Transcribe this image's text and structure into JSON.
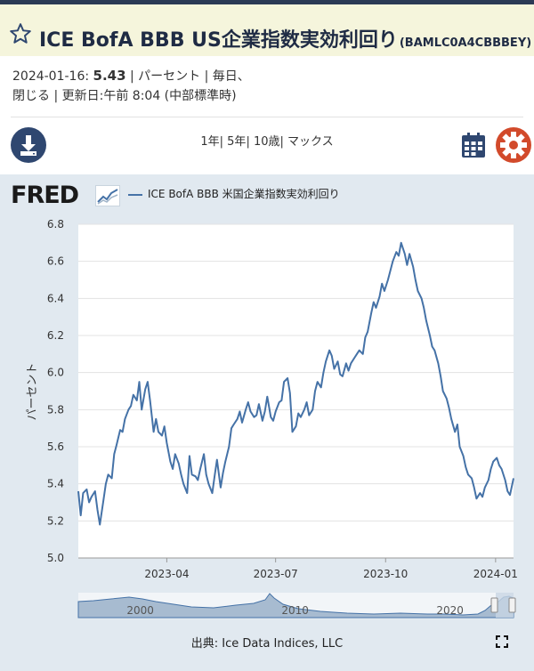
{
  "header": {
    "title": "ICE BofA BBB US企業指数実効利回り",
    "series_id": "(BAMLC0A4CBBBEY)"
  },
  "meta": {
    "date": "2024-01-16:",
    "value": "5.43",
    "units": "パーセント",
    "frequency": "毎日、",
    "line2": "閉じる | 更新日:午前 8:04 (中部標準時)"
  },
  "toolbar": {
    "ranges": [
      "1年",
      "5年",
      "10歳",
      "マックス"
    ]
  },
  "icons": {
    "download": "download-icon",
    "calendar": "calendar-icon",
    "settings": "gear-icon",
    "star": "star-icon",
    "fullscreen": "fullscreen-icon"
  },
  "brand": "FRED",
  "colors": {
    "line": "#4572a7",
    "header_bg": "#f5f5dc",
    "panel_bg": "#e1e9f0",
    "gear": "#d24a2b",
    "dark_blue": "#2f4770"
  },
  "source": "出典: Ice Data Indices, LLC",
  "chart_data": {
    "type": "line",
    "legend": "ICE BofA BBB 米国企業指数実効利回り",
    "ylabel": "パーセント",
    "ylim": [
      5.0,
      6.8
    ],
    "yticks": [
      "5.0",
      "5.2",
      "5.4",
      "5.6",
      "5.8",
      "6.0",
      "6.2",
      "6.4",
      "6.6",
      "6.8"
    ],
    "xlim": [
      "2023-01-17",
      "2024-01-16"
    ],
    "xticks": [
      {
        "date": "2023-04-01",
        "label": "2023-04"
      },
      {
        "date": "2023-07-01",
        "label": "2023-07"
      },
      {
        "date": "2023-10-01",
        "label": "2023-10"
      },
      {
        "date": "2024-01-01",
        "label": "2024-01"
      }
    ],
    "points": [
      [
        "2023-01-17",
        5.36
      ],
      [
        "2023-01-19",
        5.23
      ],
      [
        "2023-01-21",
        5.35
      ],
      [
        "2023-01-24",
        5.37
      ],
      [
        "2023-01-26",
        5.3
      ],
      [
        "2023-01-28",
        5.33
      ],
      [
        "2023-01-31",
        5.36
      ],
      [
        "2023-02-02",
        5.26
      ],
      [
        "2023-02-04",
        5.18
      ],
      [
        "2023-02-07",
        5.31
      ],
      [
        "2023-02-09",
        5.4
      ],
      [
        "2023-02-11",
        5.45
      ],
      [
        "2023-02-14",
        5.43
      ],
      [
        "2023-02-16",
        5.56
      ],
      [
        "2023-02-18",
        5.61
      ],
      [
        "2023-02-21",
        5.69
      ],
      [
        "2023-02-23",
        5.68
      ],
      [
        "2023-02-25",
        5.75
      ],
      [
        "2023-02-28",
        5.8
      ],
      [
        "2023-03-02",
        5.82
      ],
      [
        "2023-03-04",
        5.88
      ],
      [
        "2023-03-07",
        5.85
      ],
      [
        "2023-03-09",
        5.95
      ],
      [
        "2023-03-11",
        5.8
      ],
      [
        "2023-03-14",
        5.91
      ],
      [
        "2023-03-16",
        5.95
      ],
      [
        "2023-03-18",
        5.85
      ],
      [
        "2023-03-21",
        5.68
      ],
      [
        "2023-03-23",
        5.75
      ],
      [
        "2023-03-25",
        5.68
      ],
      [
        "2023-03-28",
        5.66
      ],
      [
        "2023-03-30",
        5.71
      ],
      [
        "2023-04-01",
        5.62
      ],
      [
        "2023-04-04",
        5.52
      ],
      [
        "2023-04-06",
        5.48
      ],
      [
        "2023-04-08",
        5.56
      ],
      [
        "2023-04-11",
        5.51
      ],
      [
        "2023-04-13",
        5.45
      ],
      [
        "2023-04-15",
        5.4
      ],
      [
        "2023-04-18",
        5.35
      ],
      [
        "2023-04-20",
        5.55
      ],
      [
        "2023-04-22",
        5.45
      ],
      [
        "2023-04-25",
        5.44
      ],
      [
        "2023-04-27",
        5.42
      ],
      [
        "2023-04-29",
        5.48
      ],
      [
        "2023-05-02",
        5.56
      ],
      [
        "2023-05-04",
        5.45
      ],
      [
        "2023-05-06",
        5.4
      ],
      [
        "2023-05-09",
        5.35
      ],
      [
        "2023-05-11",
        5.44
      ],
      [
        "2023-05-13",
        5.53
      ],
      [
        "2023-05-16",
        5.38
      ],
      [
        "2023-05-18",
        5.46
      ],
      [
        "2023-05-20",
        5.52
      ],
      [
        "2023-05-23",
        5.6
      ],
      [
        "2023-05-25",
        5.7
      ],
      [
        "2023-05-27",
        5.72
      ],
      [
        "2023-05-30",
        5.75
      ],
      [
        "2023-06-01",
        5.79
      ],
      [
        "2023-06-03",
        5.73
      ],
      [
        "2023-06-06",
        5.8
      ],
      [
        "2023-06-08",
        5.84
      ],
      [
        "2023-06-10",
        5.79
      ],
      [
        "2023-06-13",
        5.76
      ],
      [
        "2023-06-15",
        5.77
      ],
      [
        "2023-06-17",
        5.83
      ],
      [
        "2023-06-20",
        5.74
      ],
      [
        "2023-06-22",
        5.79
      ],
      [
        "2023-06-24",
        5.87
      ],
      [
        "2023-06-27",
        5.76
      ],
      [
        "2023-06-29",
        5.74
      ],
      [
        "2023-07-01",
        5.79
      ],
      [
        "2023-07-04",
        5.84
      ],
      [
        "2023-07-06",
        5.85
      ],
      [
        "2023-07-08",
        5.95
      ],
      [
        "2023-07-11",
        5.97
      ],
      [
        "2023-07-13",
        5.89
      ],
      [
        "2023-07-15",
        5.68
      ],
      [
        "2023-07-18",
        5.71
      ],
      [
        "2023-07-20",
        5.78
      ],
      [
        "2023-07-22",
        5.76
      ],
      [
        "2023-07-25",
        5.8
      ],
      [
        "2023-07-27",
        5.84
      ],
      [
        "2023-07-29",
        5.77
      ],
      [
        "2023-08-01",
        5.8
      ],
      [
        "2023-08-03",
        5.9
      ],
      [
        "2023-08-05",
        5.95
      ],
      [
        "2023-08-08",
        5.92
      ],
      [
        "2023-08-10",
        6.0
      ],
      [
        "2023-08-12",
        6.06
      ],
      [
        "2023-08-15",
        6.12
      ],
      [
        "2023-08-17",
        6.09
      ],
      [
        "2023-08-19",
        6.02
      ],
      [
        "2023-08-22",
        6.06
      ],
      [
        "2023-08-24",
        5.99
      ],
      [
        "2023-08-26",
        5.98
      ],
      [
        "2023-08-29",
        6.05
      ],
      [
        "2023-08-31",
        6.01
      ],
      [
        "2023-09-02",
        6.05
      ],
      [
        "2023-09-05",
        6.08
      ],
      [
        "2023-09-07",
        6.1
      ],
      [
        "2023-09-09",
        6.12
      ],
      [
        "2023-09-12",
        6.1
      ],
      [
        "2023-09-14",
        6.19
      ],
      [
        "2023-09-16",
        6.22
      ],
      [
        "2023-09-19",
        6.32
      ],
      [
        "2023-09-21",
        6.38
      ],
      [
        "2023-09-23",
        6.35
      ],
      [
        "2023-09-26",
        6.41
      ],
      [
        "2023-09-28",
        6.48
      ],
      [
        "2023-09-30",
        6.44
      ],
      [
        "2023-10-03",
        6.5
      ],
      [
        "2023-10-05",
        6.55
      ],
      [
        "2023-10-07",
        6.6
      ],
      [
        "2023-10-10",
        6.65
      ],
      [
        "2023-10-12",
        6.63
      ],
      [
        "2023-10-14",
        6.7
      ],
      [
        "2023-10-17",
        6.64
      ],
      [
        "2023-10-19",
        6.58
      ],
      [
        "2023-10-21",
        6.64
      ],
      [
        "2023-10-24",
        6.57
      ],
      [
        "2023-10-26",
        6.5
      ],
      [
        "2023-10-28",
        6.44
      ],
      [
        "2023-10-31",
        6.4
      ],
      [
        "2023-11-02",
        6.35
      ],
      [
        "2023-11-04",
        6.28
      ],
      [
        "2023-11-07",
        6.2
      ],
      [
        "2023-11-09",
        6.14
      ],
      [
        "2023-11-11",
        6.12
      ],
      [
        "2023-11-14",
        6.05
      ],
      [
        "2023-11-16",
        5.98
      ],
      [
        "2023-11-18",
        5.9
      ],
      [
        "2023-11-21",
        5.86
      ],
      [
        "2023-11-23",
        5.81
      ],
      [
        "2023-11-25",
        5.75
      ],
      [
        "2023-11-28",
        5.68
      ],
      [
        "2023-11-30",
        5.72
      ],
      [
        "2023-12-02",
        5.6
      ],
      [
        "2023-12-05",
        5.55
      ],
      [
        "2023-12-07",
        5.49
      ],
      [
        "2023-12-09",
        5.45
      ],
      [
        "2023-12-12",
        5.43
      ],
      [
        "2023-12-14",
        5.38
      ],
      [
        "2023-12-16",
        5.32
      ],
      [
        "2023-12-19",
        5.35
      ],
      [
        "2023-12-21",
        5.33
      ],
      [
        "2023-12-23",
        5.38
      ],
      [
        "2023-12-26",
        5.42
      ],
      [
        "2023-12-28",
        5.48
      ],
      [
        "2023-12-30",
        5.52
      ],
      [
        "2024-01-02",
        5.54
      ],
      [
        "2024-01-04",
        5.5
      ],
      [
        "2024-01-06",
        5.48
      ],
      [
        "2024-01-09",
        5.42
      ],
      [
        "2024-01-11",
        5.36
      ],
      [
        "2024-01-13",
        5.34
      ],
      [
        "2024-01-16",
        5.43
      ]
    ],
    "navigator": {
      "xticks": [
        {
          "year": 2000,
          "label": "2000"
        },
        {
          "year": 2010,
          "label": "2010"
        },
        {
          "year": 2020,
          "label": "2020"
        }
      ]
    }
  }
}
